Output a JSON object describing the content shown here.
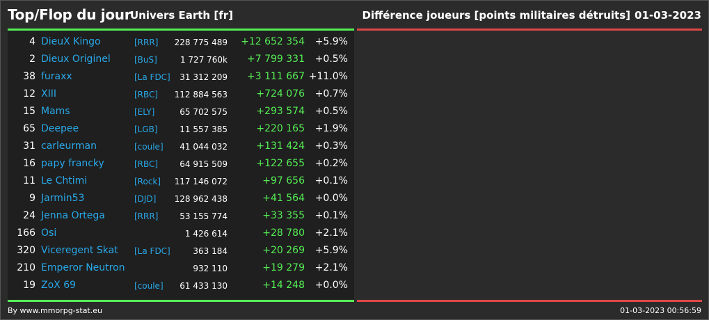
{
  "header": {
    "title": "Top/Flop du jour",
    "universe": "Univers Earth [fr]",
    "metric": "Différence joueurs [points militaires détruits]",
    "date": "01-03-2023"
  },
  "colors": {
    "background": "#2b2b2b",
    "panel": "#1f1f1f",
    "top_line": "#55ee55",
    "flop_line": "#e04848",
    "name_link": "#29a8e8",
    "positive_diff": "#55ee55"
  },
  "top": [
    {
      "rank": "4",
      "name": "DieuX Kingo",
      "alliance": "[RRR]",
      "points": "228 775 489",
      "diff": "+12 652 354",
      "pct": "+5.9%"
    },
    {
      "rank": "2",
      "name": "Dieux Originel",
      "alliance": "[BuS]",
      "points": "1 727 760k",
      "diff": "+7 799 331",
      "pct": "+0.5%"
    },
    {
      "rank": "38",
      "name": "furaxx",
      "alliance": "[La FDC]",
      "points": "31 312 209",
      "diff": "+3 111 667",
      "pct": "+11.0%"
    },
    {
      "rank": "12",
      "name": "XIII",
      "alliance": "[RBC]",
      "points": "112 884 563",
      "diff": "+724 076",
      "pct": "+0.7%"
    },
    {
      "rank": "15",
      "name": "Mams",
      "alliance": "[ELY]",
      "points": "65 702 575",
      "diff": "+293 574",
      "pct": "+0.5%"
    },
    {
      "rank": "65",
      "name": "Deepee",
      "alliance": "[LGB]",
      "points": "11 557 385",
      "diff": "+220 165",
      "pct": "+1.9%"
    },
    {
      "rank": "31",
      "name": "carleurman",
      "alliance": "[coule]",
      "points": "41 044 032",
      "diff": "+131 424",
      "pct": "+0.3%"
    },
    {
      "rank": "16",
      "name": "papy francky",
      "alliance": "[RBC]",
      "points": "64 915 509",
      "diff": "+122 655",
      "pct": "+0.2%"
    },
    {
      "rank": "11",
      "name": "Le Chtimi",
      "alliance": "[Rock]",
      "points": "117 146 072",
      "diff": "+97 656",
      "pct": "+0.1%"
    },
    {
      "rank": "9",
      "name": "Jarmin53",
      "alliance": "[DJD]",
      "points": "128 962 438",
      "diff": "+41 564",
      "pct": "+0.0%"
    },
    {
      "rank": "24",
      "name": "Jenna Ortega",
      "alliance": "[RRR]",
      "points": "53 155 774",
      "diff": "+33 355",
      "pct": "+0.1%"
    },
    {
      "rank": "166",
      "name": "Osi",
      "alliance": "",
      "points": "1 426 614",
      "diff": "+28 780",
      "pct": "+2.1%"
    },
    {
      "rank": "320",
      "name": "Viceregent Skat",
      "alliance": "[La FDC]",
      "points": "363 184",
      "diff": "+20 269",
      "pct": "+5.9%"
    },
    {
      "rank": "210",
      "name": "Emperor Neutron",
      "alliance": "",
      "points": "932 110",
      "diff": "+19 279",
      "pct": "+2.1%"
    },
    {
      "rank": "19",
      "name": "ZoX 69",
      "alliance": "[coule]",
      "points": "61 433 130",
      "diff": "+14 248",
      "pct": "+0.0%"
    }
  ],
  "footer": {
    "credit": "By www.mmorpg-stat.eu",
    "timestamp": "01-03-2023 00:56:59"
  }
}
